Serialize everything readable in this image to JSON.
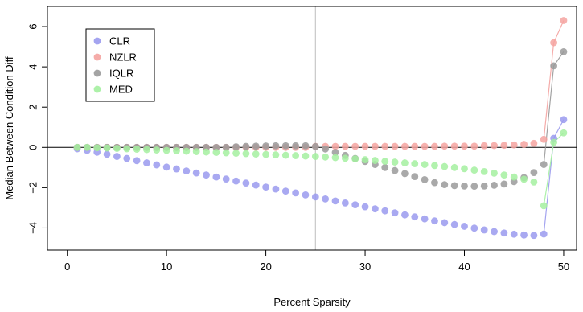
{
  "chart_data": {
    "type": "scatter",
    "title": "",
    "xlabel": "Percent Sparsity",
    "ylabel": "Median Between Condition Diff",
    "xlim": [
      -2,
      51.3
    ],
    "ylim": [
      -5.1,
      7.0
    ],
    "x_ticks": [
      0,
      10,
      20,
      30,
      40,
      50
    ],
    "y_ticks": [
      -4,
      -2,
      0,
      2,
      4,
      6
    ],
    "reference_lines": {
      "vertical_x": 25,
      "horizontal_y": 0
    },
    "legend_position": "top-left",
    "series": [
      {
        "name": "CLR",
        "color": "#9a9aee",
        "x": [
          1,
          2,
          3,
          4,
          5,
          6,
          7,
          8,
          9,
          10,
          11,
          12,
          13,
          14,
          15,
          16,
          17,
          18,
          19,
          20,
          21,
          22,
          23,
          24,
          25,
          26,
          27,
          28,
          29,
          30,
          31,
          32,
          33,
          34,
          35,
          36,
          37,
          38,
          39,
          40,
          41,
          42,
          43,
          44,
          45,
          46,
          47,
          48,
          49,
          50
        ],
        "y": [
          -0.07,
          -0.15,
          -0.24,
          -0.34,
          -0.45,
          -0.55,
          -0.66,
          -0.77,
          -0.87,
          -0.98,
          -1.07,
          -1.17,
          -1.27,
          -1.37,
          -1.47,
          -1.57,
          -1.67,
          -1.77,
          -1.87,
          -1.97,
          -2.07,
          -2.17,
          -2.26,
          -2.36,
          -2.46,
          -2.56,
          -2.66,
          -2.76,
          -2.85,
          -2.95,
          -3.05,
          -3.15,
          -3.25,
          -3.35,
          -3.45,
          -3.55,
          -3.65,
          -3.74,
          -3.83,
          -3.92,
          -4.01,
          -4.1,
          -4.18,
          -4.25,
          -4.31,
          -4.35,
          -4.37,
          -4.3,
          0.45,
          1.38
        ]
      },
      {
        "name": "NZLR",
        "color": "#f4a3a0",
        "x": [
          1,
          2,
          3,
          4,
          5,
          6,
          7,
          8,
          9,
          10,
          11,
          12,
          13,
          14,
          15,
          16,
          17,
          18,
          19,
          20,
          21,
          22,
          23,
          24,
          25,
          26,
          27,
          28,
          29,
          30,
          31,
          32,
          33,
          34,
          35,
          36,
          37,
          38,
          39,
          40,
          41,
          42,
          43,
          44,
          45,
          46,
          47,
          48,
          49,
          50
        ],
        "y": [
          0,
          0,
          0,
          0,
          0,
          0,
          0,
          0,
          0,
          0,
          0,
          0,
          0,
          0,
          0,
          0,
          0,
          0,
          0,
          0,
          0,
          0,
          0,
          0,
          0.05,
          0.05,
          0.05,
          0.05,
          0.05,
          0.05,
          0.05,
          0.05,
          0.05,
          0.05,
          0.05,
          0.05,
          0.05,
          0.06,
          0.06,
          0.06,
          0.06,
          0.08,
          0.09,
          0.1,
          0.12,
          0.15,
          0.2,
          0.4,
          5.2,
          6.3
        ]
      },
      {
        "name": "IQLR",
        "color": "#9a9a9a",
        "x": [
          1,
          2,
          3,
          4,
          5,
          6,
          7,
          8,
          9,
          10,
          11,
          12,
          13,
          14,
          15,
          16,
          17,
          18,
          19,
          20,
          21,
          22,
          23,
          24,
          25,
          26,
          27,
          28,
          29,
          30,
          31,
          32,
          33,
          34,
          35,
          36,
          37,
          38,
          39,
          40,
          41,
          42,
          43,
          44,
          45,
          46,
          47,
          48,
          49,
          50
        ],
        "y": [
          0,
          0,
          0,
          0,
          0,
          0,
          0,
          0,
          0,
          0,
          0,
          0,
          0,
          0,
          0,
          0,
          0.03,
          0.05,
          0.06,
          0.07,
          0.08,
          0.08,
          0.08,
          0.08,
          0.04,
          -0.08,
          -0.25,
          -0.4,
          -0.55,
          -0.7,
          -0.85,
          -1.0,
          -1.15,
          -1.3,
          -1.45,
          -1.6,
          -1.75,
          -1.85,
          -1.9,
          -1.92,
          -1.93,
          -1.92,
          -1.88,
          -1.82,
          -1.7,
          -1.5,
          -1.25,
          -0.85,
          4.05,
          4.75
        ]
      },
      {
        "name": "MED",
        "color": "#a4f0a0",
        "x": [
          1,
          2,
          3,
          4,
          5,
          6,
          7,
          8,
          9,
          10,
          11,
          12,
          13,
          14,
          15,
          16,
          17,
          18,
          19,
          20,
          21,
          22,
          23,
          24,
          25,
          26,
          27,
          28,
          29,
          30,
          31,
          32,
          33,
          34,
          35,
          36,
          37,
          38,
          39,
          40,
          41,
          42,
          43,
          44,
          45,
          46,
          47,
          48,
          49,
          50
        ],
        "y": [
          0,
          0,
          -0.02,
          -0.03,
          -0.05,
          -0.07,
          -0.09,
          -0.11,
          -0.13,
          -0.15,
          -0.17,
          -0.19,
          -0.21,
          -0.23,
          -0.25,
          -0.27,
          -0.29,
          -0.31,
          -0.33,
          -0.35,
          -0.37,
          -0.39,
          -0.41,
          -0.43,
          -0.45,
          -0.48,
          -0.51,
          -0.54,
          -0.57,
          -0.61,
          -0.65,
          -0.69,
          -0.73,
          -0.77,
          -0.81,
          -0.85,
          -0.9,
          -0.95,
          -1.0,
          -1.06,
          -1.13,
          -1.2,
          -1.28,
          -1.37,
          -1.47,
          -1.58,
          -1.72,
          -2.9,
          0.25,
          0.72
        ]
      }
    ]
  }
}
